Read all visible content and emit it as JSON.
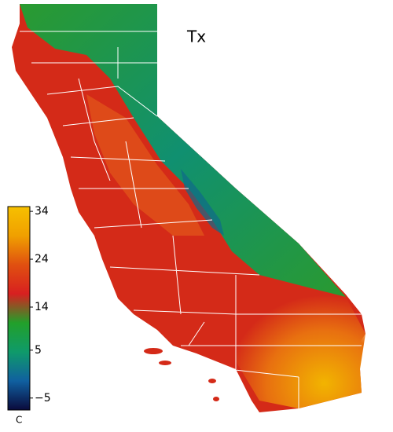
{
  "title": "Tx",
  "colorbar": {
    "unit": "C",
    "lim": [
      -7.5,
      35
    ],
    "ticks": [
      {
        "value": -5,
        "label": "−5"
      },
      5,
      14,
      24,
      34
    ],
    "colors": [
      "#0a0a3c",
      "#1060a0",
      "#0f9a6a",
      "#22a02a",
      "#d82020",
      "#e05010",
      "#f0a000",
      "#f6c000"
    ]
  }
}
